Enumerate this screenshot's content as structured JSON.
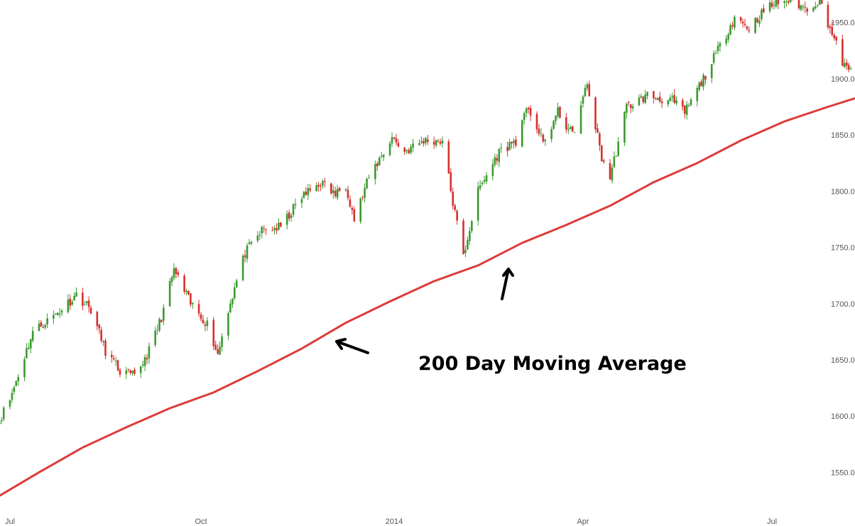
{
  "chart_data": {
    "type": "candlestick",
    "title": "",
    "xlabel": "",
    "ylabel": "",
    "ylim": [
      1525,
      1970
    ],
    "grid": false,
    "colors": {
      "up": "#3a9a2e",
      "down": "#d62f2f",
      "moving_average": "#dd3b3b",
      "arrow": "#000000",
      "axis_text": "#555555"
    },
    "x_ticks": [
      {
        "label": "Jul",
        "date": "2013-07-01"
      },
      {
        "label": "Oct",
        "date": "2013-10-01"
      },
      {
        "label": "2014",
        "date": "2014-01-01"
      },
      {
        "label": "Apr",
        "date": "2014-04-01"
      },
      {
        "label": "Jul",
        "date": "2014-07-01"
      }
    ],
    "y_ticks": [
      1550,
      1600,
      1650,
      1700,
      1750,
      1800,
      1850,
      1900,
      1950
    ],
    "y_tick_labels": [
      "1550.0",
      "1600.0",
      "1650.0",
      "1700.0",
      "1750.0",
      "1800.0",
      "1850.0",
      "1900.0",
      "1950.0"
    ],
    "price_path": [
      [
        "2013-06-24",
        1590
      ],
      [
        "2013-07-01",
        1615
      ],
      [
        "2013-07-12",
        1675
      ],
      [
        "2013-07-24",
        1692
      ],
      [
        "2013-08-02",
        1708
      ],
      [
        "2013-08-09",
        1695
      ],
      [
        "2013-08-16",
        1658
      ],
      [
        "2013-08-23",
        1640
      ],
      [
        "2013-08-30",
        1635
      ],
      [
        "2013-09-06",
        1658
      ],
      [
        "2013-09-12",
        1688
      ],
      [
        "2013-09-18",
        1730
      ],
      [
        "2013-09-26",
        1700
      ],
      [
        "2013-10-04",
        1682
      ],
      [
        "2013-10-09",
        1655
      ],
      [
        "2013-10-14",
        1695
      ],
      [
        "2013-10-22",
        1745
      ],
      [
        "2013-10-30",
        1765
      ],
      [
        "2013-11-08",
        1768
      ],
      [
        "2013-11-18",
        1795
      ],
      [
        "2013-11-27",
        1808
      ],
      [
        "2013-12-04",
        1797
      ],
      [
        "2013-12-09",
        1806
      ],
      [
        "2013-12-13",
        1775
      ],
      [
        "2013-12-20",
        1812
      ],
      [
        "2013-12-31",
        1848
      ],
      [
        "2014-01-06",
        1835
      ],
      [
        "2014-01-15",
        1845
      ],
      [
        "2014-01-24",
        1845
      ],
      [
        "2014-01-29",
        1790
      ],
      [
        "2014-02-03",
        1742
      ],
      [
        "2014-02-10",
        1800
      ],
      [
        "2014-02-20",
        1835
      ],
      [
        "2014-02-28",
        1845
      ],
      [
        "2014-03-06",
        1875
      ],
      [
        "2014-03-13",
        1842
      ],
      [
        "2014-03-20",
        1870
      ],
      [
        "2014-03-27",
        1850
      ],
      [
        "2014-04-03",
        1895
      ],
      [
        "2014-04-10",
        1830
      ],
      [
        "2014-04-14",
        1812
      ],
      [
        "2014-04-22",
        1875
      ],
      [
        "2014-05-02",
        1885
      ],
      [
        "2014-05-14",
        1880
      ],
      [
        "2014-05-20",
        1870
      ],
      [
        "2014-05-29",
        1900
      ],
      [
        "2014-06-09",
        1940
      ],
      [
        "2014-06-13",
        1955
      ],
      [
        "2014-06-20",
        1945
      ],
      [
        "2014-06-27",
        1960
      ],
      [
        "2014-07-03",
        1968
      ],
      [
        "2014-07-11",
        1970
      ],
      [
        "2014-07-17",
        1962
      ],
      [
        "2014-07-24",
        1970
      ],
      [
        "2014-07-31",
        1935
      ],
      [
        "2014-08-04",
        1915
      ],
      [
        "2014-08-07",
        1905
      ],
      [
        "2014-08-12",
        1922
      ]
    ],
    "moving_average": {
      "name": "200 Day Moving Average",
      "points": [
        [
          "2013-06-24",
          1527
        ],
        [
          "2013-07-15",
          1550
        ],
        [
          "2013-08-05",
          1572
        ],
        [
          "2013-08-26",
          1590
        ],
        [
          "2013-09-16",
          1607
        ],
        [
          "2013-10-07",
          1621
        ],
        [
          "2013-10-28",
          1640
        ],
        [
          "2013-11-18",
          1660
        ],
        [
          "2013-12-09",
          1683
        ],
        [
          "2013-12-30",
          1702
        ],
        [
          "2014-01-20",
          1720
        ],
        [
          "2014-02-10",
          1734
        ],
        [
          "2014-03-03",
          1754
        ],
        [
          "2014-03-24",
          1770
        ],
        [
          "2014-04-14",
          1787
        ],
        [
          "2014-05-05",
          1808
        ],
        [
          "2014-05-26",
          1825
        ],
        [
          "2014-06-16",
          1845
        ],
        [
          "2014-07-07",
          1862
        ],
        [
          "2014-07-28",
          1875
        ],
        [
          "2014-08-14",
          1885
        ]
      ]
    },
    "annotations": [
      {
        "text": "200 Day Moving Average"
      }
    ]
  }
}
